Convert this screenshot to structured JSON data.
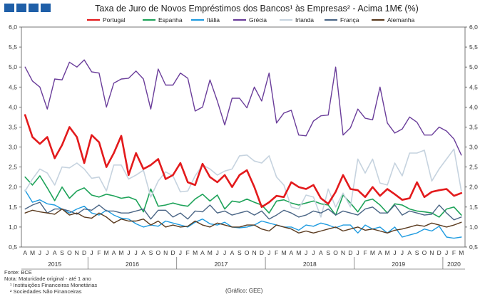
{
  "header": {
    "title": "Taxa de Juro de Novos Empréstimos dos Bancos¹ às Empresas² - Acima 1M€ (%)"
  },
  "footer": {
    "source": "Fonte: BCE",
    "note": "Nota: Maturidade original - até 1 ano",
    "note1": "¹ Instituições Financeiras Monetárias",
    "note2": "² Sociedades Não Financeiras",
    "credit": "(Gráfico: GEE)"
  },
  "chart_data": {
    "type": "line",
    "ylim": [
      0.5,
      6.0
    ],
    "yticks": [
      "0,5",
      "1,0",
      "1,5",
      "2,0",
      "2,5",
      "3,0",
      "3,5",
      "4,0",
      "4,5",
      "5,0",
      "5,5",
      "6,0"
    ],
    "x": [
      "A",
      "M",
      "J",
      "J",
      "A",
      "S",
      "O",
      "N",
      "D",
      "J",
      "F",
      "M",
      "A",
      "M",
      "J",
      "J",
      "A",
      "S",
      "O",
      "N",
      "D",
      "J",
      "F",
      "M",
      "A",
      "M",
      "J",
      "J",
      "A",
      "S",
      "O",
      "N",
      "D",
      "J",
      "F",
      "M",
      "A",
      "M",
      "J",
      "J",
      "A",
      "S",
      "O",
      "N",
      "D",
      "J",
      "F",
      "M",
      "A",
      "M",
      "J",
      "J",
      "A",
      "S",
      "O",
      "N",
      "D",
      "J",
      "F",
      "M"
    ],
    "years": [
      {
        "label": "2015",
        "start": 0,
        "end": 8
      },
      {
        "label": "2016",
        "start": 9,
        "end": 20
      },
      {
        "label": "2017",
        "start": 21,
        "end": 32
      },
      {
        "label": "2018",
        "start": 33,
        "end": 44
      },
      {
        "label": "2019",
        "start": 45,
        "end": 56
      },
      {
        "label": "2020",
        "start": 57,
        "end": 59
      }
    ],
    "legend_position": "top",
    "grid": false,
    "series": [
      {
        "name": "Portugal",
        "color": "#e31a1c",
        "width": 2.6,
        "values": [
          3.8,
          3.25,
          3.08,
          3.25,
          2.72,
          3.05,
          3.5,
          3.25,
          2.6,
          3.3,
          3.12,
          2.5,
          2.85,
          3.28,
          2.3,
          2.85,
          2.45,
          2.55,
          2.7,
          2.2,
          2.3,
          2.6,
          2.12,
          2.05,
          2.58,
          2.25,
          2.12,
          2.3,
          2.0,
          2.3,
          2.42,
          2.0,
          1.5,
          1.62,
          1.78,
          1.75,
          2.12,
          2.0,
          1.95,
          2.05,
          1.72,
          1.58,
          1.88,
          2.3,
          1.95,
          1.92,
          1.75,
          2.0,
          1.78,
          1.95,
          1.82,
          1.68,
          1.72,
          2.12,
          1.75,
          1.88,
          1.92,
          1.95,
          1.78,
          1.85
        ]
      },
      {
        "name": "Espanha",
        "color": "#1fa35a",
        "width": 1.6,
        "values": [
          2.25,
          2.05,
          2.28,
          1.98,
          1.66,
          2.0,
          1.72,
          1.9,
          1.98,
          1.8,
          1.75,
          1.82,
          1.78,
          1.72,
          1.75,
          1.68,
          1.38,
          1.95,
          1.52,
          1.55,
          1.6,
          1.55,
          1.52,
          1.7,
          1.82,
          1.65,
          1.8,
          1.45,
          1.65,
          1.62,
          1.7,
          1.62,
          1.55,
          1.35,
          1.65,
          1.68,
          1.6,
          1.55,
          1.6,
          1.65,
          1.58,
          1.55,
          1.3,
          1.8,
          1.6,
          1.38,
          1.65,
          1.7,
          1.55,
          1.35,
          1.58,
          1.55,
          1.45,
          1.4,
          1.38,
          1.35,
          1.25,
          1.45,
          1.5,
          1.3
        ]
      },
      {
        "name": "Itália",
        "color": "#1e9be0",
        "width": 1.4,
        "values": [
          1.92,
          1.62,
          1.68,
          1.58,
          1.55,
          1.45,
          1.35,
          1.45,
          1.52,
          1.35,
          1.3,
          1.42,
          1.3,
          1.22,
          1.2,
          1.08,
          1.0,
          1.05,
          1.02,
          1.15,
          1.1,
          1.05,
          1.0,
          1.12,
          1.2,
          1.08,
          1.05,
          1.12,
          1.0,
          0.98,
          1.0,
          1.05,
          1.15,
          1.1,
          1.05,
          1.0,
          1.0,
          0.92,
          1.05,
          1.02,
          1.1,
          1.05,
          0.98,
          1.05,
          1.05,
          0.85,
          1.05,
          0.95,
          1.0,
          0.85,
          1.0,
          0.75,
          0.8,
          0.85,
          0.95,
          0.9,
          1.02,
          0.75,
          0.72,
          0.75
        ]
      },
      {
        "name": "Grécia",
        "color": "#6a3d9a",
        "width": 1.4,
        "values": [
          5.0,
          4.65,
          4.5,
          3.95,
          4.7,
          4.68,
          5.12,
          5.0,
          5.18,
          4.88,
          4.85,
          4.0,
          4.6,
          4.7,
          4.72,
          4.9,
          4.7,
          3.95,
          4.95,
          4.55,
          4.55,
          4.85,
          4.72,
          3.9,
          4.0,
          4.68,
          4.15,
          3.55,
          4.22,
          4.22,
          3.98,
          4.5,
          4.15,
          4.85,
          3.6,
          3.85,
          3.92,
          3.3,
          3.28,
          3.65,
          3.78,
          3.8,
          5.0,
          3.3,
          3.48,
          3.95,
          3.72,
          3.68,
          4.5,
          3.6,
          3.35,
          3.45,
          3.75,
          3.62,
          3.3,
          3.3,
          3.5,
          3.4,
          3.2,
          2.8
        ]
      },
      {
        "name": "Irlanda",
        "color": "#c6d3df",
        "width": 1.6,
        "values": [
          1.9,
          2.2,
          2.45,
          2.35,
          2.05,
          2.5,
          2.48,
          2.6,
          2.45,
          2.22,
          2.25,
          1.9,
          2.55,
          2.55,
          2.2,
          2.3,
          2.42,
          1.75,
          2.15,
          2.38,
          2.28,
          1.88,
          1.9,
          2.28,
          2.55,
          2.45,
          2.3,
          2.4,
          2.45,
          2.78,
          2.8,
          2.65,
          2.6,
          2.78,
          2.25,
          2.05,
          1.5,
          1.45,
          1.8,
          1.75,
          1.25,
          1.95,
          1.5,
          1.85,
          1.5,
          2.7,
          2.35,
          2.7,
          2.1,
          2.05,
          2.6,
          2.28,
          2.85,
          2.85,
          2.92,
          2.15,
          2.45,
          2.7,
          2.95,
          1.9
        ]
      },
      {
        "name": "França",
        "color": "#4a6585",
        "width": 1.4,
        "values": [
          1.45,
          1.55,
          1.62,
          1.35,
          1.45,
          1.45,
          1.4,
          1.32,
          1.45,
          1.42,
          1.55,
          1.4,
          1.4,
          1.35,
          1.35,
          1.4,
          1.45,
          1.2,
          1.42,
          1.42,
          1.25,
          1.35,
          1.2,
          1.4,
          1.38,
          1.55,
          1.35,
          1.4,
          1.3,
          1.35,
          1.4,
          1.3,
          1.4,
          1.2,
          1.3,
          1.42,
          1.35,
          1.25,
          1.3,
          1.4,
          1.35,
          1.45,
          1.3,
          1.4,
          1.35,
          1.3,
          1.45,
          1.5,
          1.35,
          1.35,
          1.55,
          1.3,
          1.4,
          1.35,
          1.3,
          1.32,
          1.55,
          1.35,
          1.18,
          1.25
        ]
      },
      {
        "name": "Alemanha",
        "color": "#5a3a1e",
        "width": 1.4,
        "values": [
          1.35,
          1.42,
          1.38,
          1.35,
          1.32,
          1.45,
          1.3,
          1.35,
          1.25,
          1.22,
          1.35,
          1.25,
          1.1,
          1.2,
          1.15,
          1.15,
          1.2,
          1.05,
          1.15,
          1.0,
          1.05,
          1.0,
          1.02,
          1.15,
          1.05,
          1.0,
          1.1,
          1.05,
          1.0,
          1.0,
          1.05,
          1.05,
          0.95,
          0.9,
          1.05,
          1.0,
          0.95,
          0.85,
          0.9,
          0.85,
          0.9,
          0.95,
          1.0,
          0.9,
          0.95,
          1.0,
          0.92,
          0.95,
          0.9,
          0.85,
          0.92,
          0.95,
          1.0,
          1.05,
          1.02,
          1.1,
          1.05,
          1.0,
          1.05,
          1.12
        ]
      }
    ]
  }
}
